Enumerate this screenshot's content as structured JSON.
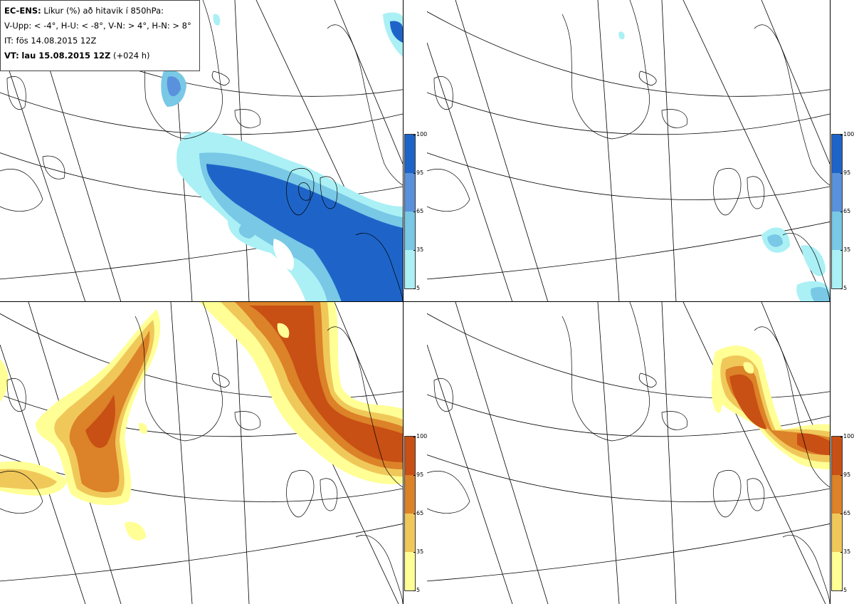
{
  "title": {
    "model": "EC-ENS:",
    "description": "Líkur (%) að hitavik í 850hPa:",
    "categories": "V-Upp: < -4°, H-U: < -8°, V-N: > 4°, H-N: > 8°",
    "init_time": "IT: fös 14.08.2015 12Z",
    "valid_label": "VT:",
    "valid_time": "lau 15.08.2015 12Z",
    "lead_time": "(+024 h)"
  },
  "legends": {
    "cold": {
      "ticks": [
        "100",
        "95",
        "65",
        "35",
        "5"
      ],
      "colors": [
        "#1e64c8",
        "#5a91dc",
        "#78c8e6",
        "#aaf0f5"
      ]
    },
    "warm": {
      "ticks": [
        "100",
        "95",
        "65",
        "35",
        "5"
      ],
      "colors": [
        "#c85014",
        "#dc8228",
        "#f0c85a",
        "#ffff96"
      ]
    }
  },
  "panels": [
    {
      "id": "top-left",
      "variant": "cold",
      "threshold": "< -4°"
    },
    {
      "id": "top-right",
      "variant": "cold",
      "threshold": "< -8°"
    },
    {
      "id": "bottom-left",
      "variant": "warm",
      "threshold": "> 4°"
    },
    {
      "id": "bottom-right",
      "variant": "warm",
      "threshold": "> 8°"
    }
  ]
}
